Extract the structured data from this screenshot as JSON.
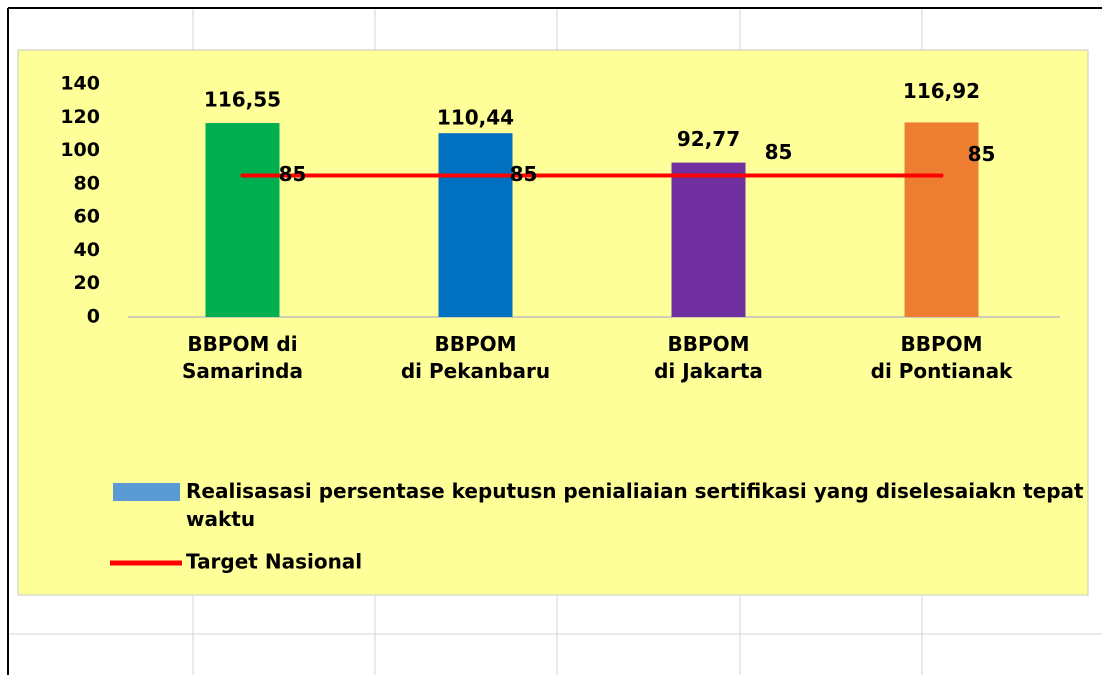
{
  "chart_data": {
    "type": "bar",
    "categories": [
      [
        "BBPOM di",
        "Samarinda"
      ],
      [
        "BBPOM",
        "di Pekanbaru"
      ],
      [
        "BBPOM",
        "di Jakarta"
      ],
      [
        "BBPOM",
        "di Pontianak"
      ]
    ],
    "series": [
      {
        "name": "Realisasasi persentase keputusn penialiaian sertifikasi yang diselesaiakn tepat waktu",
        "type": "bar",
        "color": "#5b9bd5",
        "colors": [
          "#00b050",
          "#0070c0",
          "#7030a0",
          "#ed7d31"
        ],
        "values": [
          116.55,
          110.44,
          92.77,
          116.92
        ],
        "value_labels": [
          "116,55",
          "110,44",
          "92,77",
          "116,92"
        ]
      },
      {
        "name": "Target Nasional",
        "type": "line",
        "color": "#ff0000",
        "values": [
          85,
          85,
          85,
          85
        ]
      }
    ],
    "ylim": [
      0,
      140
    ],
    "yticks": [
      0,
      20,
      40,
      60,
      80,
      100,
      120,
      140
    ],
    "grid": false
  }
}
